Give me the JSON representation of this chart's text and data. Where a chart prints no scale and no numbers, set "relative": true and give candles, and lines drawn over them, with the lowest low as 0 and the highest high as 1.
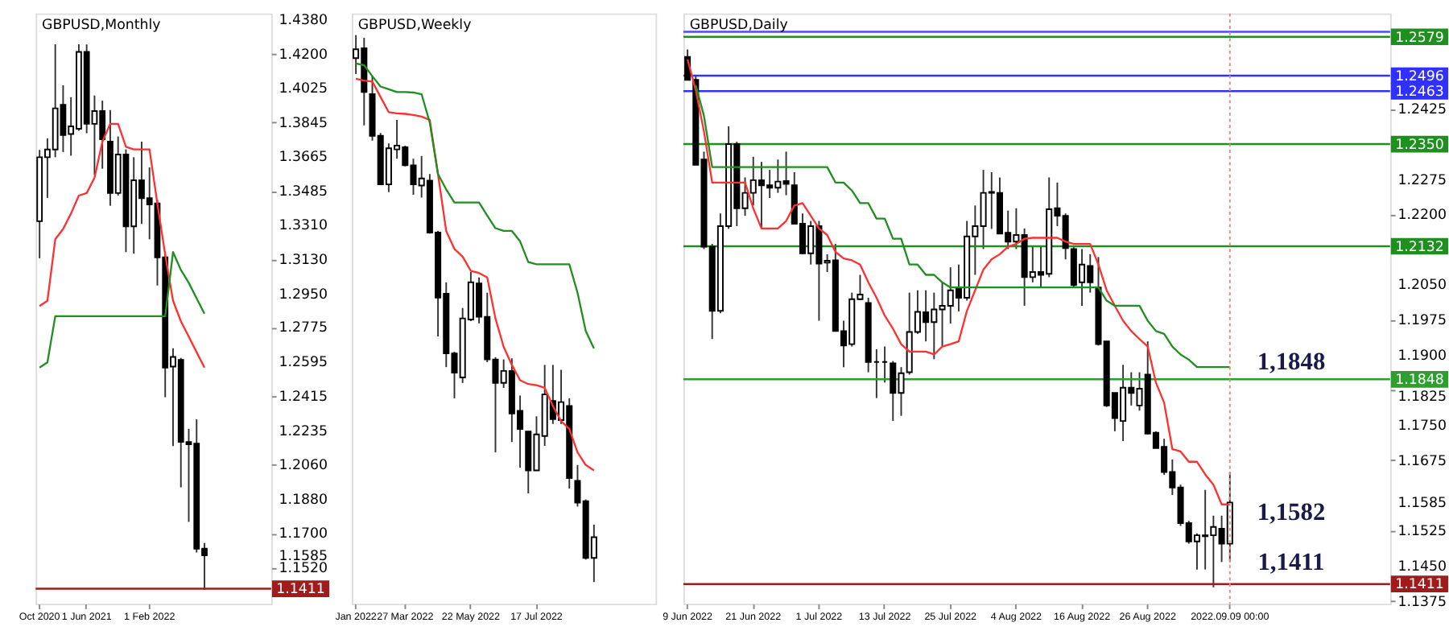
{
  "chart_data": [
    {
      "type": "candlestick",
      "title": "GBPUSD,Monthly",
      "categories": [
        "Oct 2020",
        null,
        null,
        null,
        null,
        null,
        "1 Jun 2021",
        null,
        null,
        null,
        null,
        null,
        null,
        null,
        "1 Feb 2022",
        null,
        null,
        null,
        null,
        null,
        null,
        null,
        null,
        null,
        null,
        null,
        null,
        null,
        null,
        null
      ],
      "ohlc": [
        [
          1.3328,
          1.37,
          1.3135,
          1.3662
        ],
        [
          1.3662,
          1.376,
          1.345,
          1.3702
        ],
        [
          1.3702,
          1.4251,
          1.3662,
          1.3917
        ],
        [
          1.3935,
          1.4037,
          1.3689,
          1.3778
        ],
        [
          1.3783,
          1.3975,
          1.367,
          1.3823
        ],
        [
          1.381,
          1.4251,
          1.38,
          1.4211
        ],
        [
          1.4211,
          1.425,
          1.3787,
          1.3836
        ],
        [
          1.3836,
          1.3984,
          1.3569,
          1.3903
        ],
        [
          1.3903,
          1.3957,
          1.3602,
          1.3756
        ],
        [
          1.3743,
          1.3908,
          1.3409,
          1.3475
        ],
        [
          1.3475,
          1.377,
          1.3462,
          1.3676
        ],
        [
          1.3676,
          1.3703,
          1.3167,
          1.3301
        ],
        [
          1.3301,
          1.3662,
          1.3159,
          1.3542
        ],
        [
          1.3542,
          1.3743,
          1.3314,
          1.3448
        ],
        [
          1.3448,
          1.3609,
          1.3234,
          1.3416
        ],
        [
          1.3421,
          1.344,
          1.2993,
          1.314
        ],
        [
          1.314,
          1.317,
          1.241,
          1.2565
        ],
        [
          1.257,
          1.2665,
          1.2155,
          1.262
        ],
        [
          1.2605,
          1.2615,
          1.194,
          1.2177
        ],
        [
          1.2177,
          1.2245,
          1.176,
          1.2165
        ],
        [
          1.2168,
          1.2295,
          1.16,
          1.162
        ],
        [
          1.162,
          1.165,
          1.1405,
          1.1585
        ],
        null,
        null,
        null,
        null,
        null,
        null,
        null,
        null
      ],
      "series": [
        {
          "type": "line",
          "color": "#ff3030",
          "values": [
            1.2886,
            1.2913,
            1.3234,
            1.3288,
            1.3368,
            1.3462,
            1.3475,
            1.3555,
            1.3743,
            1.3836,
            1.3836,
            1.3716,
            1.3703,
            1.3703,
            1.3703,
            1.3421,
            1.3154,
            1.2913,
            1.2806,
            1.2726,
            1.2645,
            1.2565,
            null,
            null,
            null,
            null,
            null,
            null,
            null,
            null
          ]
        },
        {
          "type": "line",
          "color": "#1f8f1f",
          "values": [
            1.2565,
            1.2592,
            1.2833,
            1.2833,
            1.2833,
            1.2833,
            1.2833,
            1.2833,
            1.2833,
            1.2833,
            1.2833,
            1.2833,
            1.2833,
            1.2833,
            1.2833,
            1.2833,
            1.2833,
            1.3167,
            1.3074,
            1.3007,
            1.2926,
            1.2846,
            null,
            null,
            null,
            null,
            null,
            null,
            null,
            null
          ]
        }
      ],
      "ylim": [
        1.1333,
        1.4412
      ],
      "yticks": [
        {
          "value": 1.438,
          "label": "1.4380"
        },
        {
          "value": 1.42,
          "label": "1.4200"
        },
        {
          "value": 1.4025,
          "label": "1.4025"
        },
        {
          "value": 1.3845,
          "label": "1.3845"
        },
        {
          "value": 1.3665,
          "label": "1.3665"
        },
        {
          "value": 1.3485,
          "label": "1.3485"
        },
        {
          "value": 1.331,
          "label": "1.3310"
        },
        {
          "value": 1.313,
          "label": "1.3130"
        },
        {
          "value": 1.295,
          "label": "1.2950"
        },
        {
          "value": 1.2775,
          "label": "1.2775"
        },
        {
          "value": 1.2595,
          "label": "1.2595"
        },
        {
          "value": 1.2415,
          "label": "1.2415"
        },
        {
          "value": 1.2235,
          "label": "1.2235"
        },
        {
          "value": 1.206,
          "label": "1.2060"
        },
        {
          "value": 1.188,
          "label": "1.1880"
        },
        {
          "value": 1.17,
          "label": "1.1700"
        },
        {
          "value": 1.1585,
          "label": "1.1585"
        },
        {
          "value": 1.152,
          "label": "1.1520"
        }
      ],
      "ref_lines": [
        {
          "axis": "y",
          "value": 1.1411,
          "label": "1.1411",
          "color": "#a01c1c"
        }
      ]
    },
    {
      "type": "candlestick",
      "title": "GBPUSD,Weekly",
      "relative": true,
      "tick_labels": "x",
      "categories": [
        "Jan 2022",
        null,
        null,
        null,
        null,
        null,
        "27 Mar 2022",
        null,
        null,
        null,
        null,
        null,
        null,
        null,
        "22 May 2022",
        null,
        null,
        null,
        null,
        null,
        null,
        null,
        "17 Jul 2022",
        null,
        null,
        null,
        null,
        null,
        null,
        null,
        null,
        null,
        null,
        null,
        null,
        null,
        null
      ],
      "ohlc": [
        [
          0.958,
          1.0,
          0.929,
          0.974
        ],
        [
          0.976,
          0.995,
          0.835,
          0.896
        ],
        [
          0.892,
          0.925,
          0.807,
          0.816
        ],
        [
          0.816,
          0.821,
          0.727,
          0.727
        ],
        [
          0.727,
          0.802,
          0.713,
          0.793
        ],
        [
          0.791,
          0.845,
          0.774,
          0.798
        ],
        [
          0.795,
          0.798,
          0.76,
          0.762
        ],
        [
          0.762,
          0.774,
          0.708,
          0.727
        ],
        [
          0.725,
          0.779,
          0.703,
          0.738
        ],
        [
          0.734,
          0.746,
          0.637,
          0.639
        ],
        [
          0.639,
          0.642,
          0.449,
          0.52
        ],
        [
          0.527,
          0.548,
          0.393,
          0.418
        ],
        [
          0.418,
          0.421,
          0.336,
          0.383
        ],
        [
          0.374,
          0.501,
          0.364,
          0.482
        ],
        [
          0.48,
          0.567,
          0.477,
          0.548
        ],
        [
          0.546,
          0.557,
          0.473,
          0.485
        ],
        [
          0.485,
          0.529,
          0.402,
          0.407
        ],
        [
          0.407,
          0.411,
          0.237,
          0.364
        ],
        [
          0.364,
          0.407,
          0.355,
          0.386
        ],
        [
          0.386,
          0.409,
          0.256,
          0.308
        ],
        [
          0.313,
          0.341,
          0.209,
          0.28
        ],
        [
          0.275,
          0.275,
          0.162,
          0.204
        ],
        [
          0.204,
          0.303,
          0.204,
          0.27
        ],
        [
          0.267,
          0.397,
          0.249,
          0.343
        ],
        [
          0.331,
          0.397,
          0.289,
          0.298
        ],
        [
          0.296,
          0.388,
          0.289,
          0.329
        ],
        [
          0.322,
          0.336,
          0.171,
          0.19
        ],
        [
          0.185,
          0.214,
          0.138,
          0.145
        ],
        [
          0.148,
          0.151,
          0.041,
          0.044
        ],
        [
          0.044,
          0.105,
          0,
          0.082
        ],
        null,
        null,
        null,
        null,
        null,
        null,
        null
      ],
      "series": [
        {
          "type": "line",
          "color": "#ff3030",
          "values": [
            0.92,
            0.917,
            0.915,
            0.887,
            0.859,
            0.857,
            0.856,
            0.854,
            0.851,
            0.845,
            0.746,
            0.642,
            0.609,
            0.595,
            0.569,
            0.565,
            0.557,
            0.482,
            0.43,
            0.397,
            0.369,
            0.362,
            0.36,
            0.355,
            0.322,
            0.294,
            0.28,
            0.237,
            0.214,
            0.204,
            null,
            null,
            null,
            null,
            null,
            null,
            null
          ]
        },
        {
          "type": "line",
          "color": "#1f8f1f",
          "values": [
            0.948,
            0.945,
            0.925,
            0.906,
            0.901,
            0.896,
            0.896,
            0.895,
            0.892,
            0.84,
            0.746,
            0.718,
            0.694,
            0.694,
            0.694,
            0.694,
            0.67,
            0.647,
            0.642,
            0.642,
            0.623,
            0.585,
            0.581,
            0.581,
            0.581,
            0.581,
            0.581,
            0.529,
            0.459,
            0.427,
            null,
            null,
            null,
            null,
            null,
            null,
            null
          ]
        }
      ]
    },
    {
      "type": "candlestick",
      "title": "GBPUSD,Daily",
      "categories": [
        "9 Jun 2022",
        null,
        null,
        null,
        null,
        null,
        null,
        null,
        "21 Jun 2022",
        null,
        null,
        null,
        null,
        null,
        null,
        null,
        "1 Jul 2022",
        null,
        null,
        null,
        null,
        null,
        null,
        null,
        "13 Jul 2022",
        null,
        null,
        null,
        null,
        null,
        null,
        null,
        "25 Jul 2022",
        null,
        null,
        null,
        null,
        null,
        null,
        null,
        "4 Aug 2022",
        null,
        null,
        null,
        null,
        null,
        null,
        null,
        "16 Aug 2022",
        null,
        null,
        null,
        null,
        null,
        null,
        null,
        "26 Aug 2022",
        null,
        null,
        null,
        null,
        null,
        null,
        null,
        null,
        null,
        "2022.09.09 00:00",
        null,
        null,
        null,
        null,
        null,
        null,
        null,
        null,
        null,
        null,
        null,
        null,
        null,
        null,
        null,
        null,
        null,
        null,
        null
      ],
      "ohlc": [
        [
          1.2536,
          1.2552,
          1.2487,
          1.2487
        ],
        [
          1.2487,
          1.2498,
          1.2306,
          1.2306
        ],
        [
          1.2317,
          1.2334,
          1.2126,
          1.2131
        ],
        [
          1.2131,
          1.2137,
          1.1934,
          1.1994
        ],
        [
          1.1994,
          1.2202,
          1.1989,
          1.2175
        ],
        [
          1.2175,
          1.2388,
          1.2169,
          1.235
        ],
        [
          1.235,
          1.2355,
          1.2175,
          1.2213
        ],
        [
          1.2213,
          1.2279,
          1.2197,
          1.2246
        ],
        [
          1.2246,
          1.2323,
          1.2219,
          1.2273
        ],
        [
          1.2273,
          1.2312,
          1.217,
          1.2262
        ],
        [
          1.2262,
          1.2295,
          1.2235,
          1.2257
        ],
        [
          1.2257,
          1.2317,
          1.2246,
          1.227
        ],
        [
          1.2271,
          1.2334,
          1.2241,
          1.2265
        ],
        [
          1.2262,
          1.229,
          1.218,
          1.218
        ],
        [
          1.218,
          1.2202,
          1.2115,
          1.2117
        ],
        [
          1.2117,
          1.2186,
          1.2093,
          1.2175
        ],
        [
          1.2175,
          1.2186,
          1.1973,
          1.2095
        ],
        [
          1.2097,
          1.2115,
          1.2077,
          1.2101
        ],
        [
          1.2102,
          1.2137,
          1.1951,
          1.1951
        ],
        [
          1.1951,
          1.1973,
          1.1874,
          1.192
        ],
        [
          1.1923,
          1.2033,
          1.1918,
          1.2019
        ],
        [
          1.2019,
          1.2071,
          1.2017,
          1.2029
        ],
        [
          1.2011,
          1.2022,
          1.1863,
          1.1885
        ],
        [
          1.1885,
          1.1912,
          1.1808,
          1.1885
        ],
        [
          1.1885,
          1.1918,
          1.1841,
          1.1885
        ],
        [
          1.1882,
          1.1887,
          1.1759,
          1.1819
        ],
        [
          1.1819,
          1.1874,
          1.177,
          1.1861
        ],
        [
          1.1863,
          1.2033,
          1.1858,
          1.1949
        ],
        [
          1.1949,
          1.2038,
          1.1945,
          1.1992
        ],
        [
          1.1991,
          1.2038,
          1.1929,
          1.197
        ],
        [
          1.197,
          1.2033,
          1.1891,
          1.1997
        ],
        [
          1.1997,
          1.2055,
          1.1918,
          1.2005
        ],
        [
          1.2005,
          1.2087,
          1.1967,
          1.2038
        ],
        [
          1.2042,
          1.2093,
          1.1993,
          1.2022
        ],
        [
          1.2022,
          1.2186,
          1.2016,
          1.2153
        ],
        [
          1.2153,
          1.2219,
          1.2071,
          1.2175
        ],
        [
          1.2175,
          1.2295,
          1.2126,
          1.2246
        ],
        [
          1.2246,
          1.229,
          1.2169,
          1.2248
        ],
        [
          1.2246,
          1.2279,
          1.2159,
          1.2159
        ],
        [
          1.2161,
          1.2208,
          1.2126,
          1.2142
        ],
        [
          1.2142,
          1.2213,
          1.2126,
          1.2156
        ],
        [
          1.2156,
          1.217,
          1.2005,
          1.2066
        ],
        [
          1.2066,
          1.2131,
          1.2055,
          1.2077
        ],
        [
          1.2077,
          1.2131,
          1.2044,
          1.2071
        ],
        [
          1.2073,
          1.2279,
          1.2066,
          1.2211
        ],
        [
          1.2213,
          1.2268,
          1.2175,
          1.2197
        ],
        [
          1.2197,
          1.2202,
          1.2104,
          1.2128
        ],
        [
          1.2126,
          1.2131,
          1.2044,
          1.2049
        ],
        [
          1.2055,
          1.2126,
          1.2005,
          1.2093
        ],
        [
          1.209,
          1.2115,
          1.2033,
          1.2055
        ],
        [
          1.2044,
          1.2109,
          1.192,
          1.1923
        ],
        [
          1.1929,
          1.1929,
          1.1789,
          1.1792
        ],
        [
          1.1819,
          1.1819,
          1.1737,
          1.1765
        ],
        [
          1.1759,
          1.1879,
          1.1716,
          1.183
        ],
        [
          1.183,
          1.1863,
          1.1792,
          1.1819
        ],
        [
          1.1792,
          1.1863,
          1.1781,
          1.1828
        ],
        [
          1.1858,
          1.1929,
          1.173,
          1.1732
        ],
        [
          1.1734,
          1.1737,
          1.1701,
          1.1701
        ],
        [
          1.1704,
          1.1721,
          1.1644,
          1.165
        ],
        [
          1.165,
          1.1677,
          1.1601,
          1.1617
        ],
        [
          1.1617,
          1.1623,
          1.1535,
          1.1541
        ],
        [
          1.1541,
          1.1546,
          1.1497,
          1.1502
        ],
        [
          1.1502,
          1.1519,
          1.1442,
          1.1515
        ],
        [
          1.1515,
          1.1612,
          1.1442,
          1.1513
        ],
        [
          1.1515,
          1.1557,
          1.1404,
          1.1533
        ],
        [
          1.1529,
          1.1557,
          1.1458,
          1.1497
        ],
        [
          1.1497,
          1.165,
          1.1458,
          1.1585
        ],
        null,
        null,
        null,
        null,
        null,
        null,
        null,
        null,
        null,
        null,
        null,
        null,
        null,
        null,
        null,
        null,
        null,
        null,
        null
      ],
      "series": [
        {
          "type": "line",
          "color": "#ff3030",
          "values": [
            1.2531,
            1.2465,
            1.2377,
            1.2268,
            1.2268,
            1.2268,
            1.2268,
            1.2268,
            1.2213,
            1.217,
            1.217,
            1.217,
            1.2186,
            1.2219,
            1.2224,
            1.2197,
            1.217,
            1.2156,
            1.212,
            1.2106,
            1.2102,
            1.2093,
            1.2055,
            1.2022,
            1.1984,
            1.1956,
            1.1923,
            1.1907,
            1.1907,
            1.1907,
            1.1901,
            1.1918,
            1.1923,
            1.1929,
            1.1994,
            1.2038,
            1.2082,
            1.2104,
            1.2115,
            1.2131,
            1.2137,
            1.2148,
            1.215,
            1.215,
            1.215,
            1.215,
            1.2142,
            1.2137,
            1.2137,
            1.2137,
            1.2093,
            1.2038,
            1.2005,
            1.1973,
            1.1951,
            1.1934,
            1.1918,
            1.1841,
            1.1798,
            1.1699,
            1.1694,
            1.1672,
            1.1672,
            1.1645,
            1.1623,
            1.1581,
            1.1581,
            null,
            null,
            null,
            null,
            null,
            null,
            null,
            null,
            null,
            null,
            null,
            null,
            null,
            null,
            null,
            null,
            null,
            null,
            null
          ]
        },
        {
          "type": "line",
          "color": "#1f8f1f",
          "values": [
            null,
            1.2476,
            1.241,
            1.2301,
            1.2301,
            1.2301,
            1.2301,
            1.2301,
            1.2301,
            1.2301,
            1.2301,
            1.2301,
            1.2301,
            1.2301,
            1.2301,
            1.2301,
            1.2301,
            1.2301,
            1.2268,
            1.2268,
            1.2251,
            1.2224,
            1.2224,
            1.2191,
            1.2191,
            1.2148,
            1.2148,
            1.2093,
            1.2093,
            1.2071,
            1.2071,
            1.2055,
            1.2044,
            1.2044,
            1.2044,
            1.2044,
            1.2044,
            1.2044,
            1.2044,
            1.2044,
            1.2044,
            1.2044,
            1.2044,
            1.2044,
            1.2044,
            1.2044,
            1.2044,
            1.2044,
            1.2044,
            1.2044,
            1.2044,
            1.2016,
            1.2005,
            1.2005,
            1.2005,
            1.2005,
            1.1973,
            1.1951,
            1.1945,
            1.1918,
            1.1901,
            1.189,
            1.1874,
            1.1874,
            1.1874,
            1.1874,
            1.1874,
            null,
            null,
            null,
            null,
            null,
            null,
            null,
            null,
            null,
            null,
            null,
            null,
            null,
            null,
            null,
            null,
            null,
            null,
            null
          ]
        }
      ],
      "ylim": [
        1.1369,
        1.2629
      ],
      "yticks": [
        {
          "value": 1.2425,
          "label": "1.2425"
        },
        {
          "value": 1.2275,
          "label": "1.2275"
        },
        {
          "value": 1.22,
          "label": "1.2200"
        },
        {
          "value": 1.205,
          "label": "1.2050"
        },
        {
          "value": 1.1975,
          "label": "1.1975"
        },
        {
          "value": 1.19,
          "label": "1.1900"
        },
        {
          "value": 1.1825,
          "label": "1.1825"
        },
        {
          "value": 1.175,
          "label": "1.1750"
        },
        {
          "value": 1.1675,
          "label": "1.1675"
        },
        {
          "value": 1.1585,
          "label": "1.1585"
        },
        {
          "value": 1.1525,
          "label": "1.1525"
        },
        {
          "value": 1.145,
          "label": "1.1450"
        },
        {
          "value": 1.1375,
          "label": "1.1375"
        }
      ],
      "ref_lines": [
        {
          "axis": "y",
          "value": 1.259,
          "label": null,
          "color": "#4a4aff"
        },
        {
          "axis": "y",
          "value": 1.2579,
          "label": "1.2579",
          "color": "#1f8f1f"
        },
        {
          "axis": "y",
          "value": 1.2496,
          "label": "1.2496",
          "color": "#3030ff"
        },
        {
          "axis": "y",
          "value": 1.2463,
          "label": "1.2463",
          "color": "#3030ff"
        },
        {
          "axis": "y",
          "value": 1.235,
          "label": "1.2350",
          "color": "#1f8f1f"
        },
        {
          "axis": "y",
          "value": 1.2132,
          "label": "1.2132",
          "color": "#1f8f1f"
        },
        {
          "axis": "y",
          "value": 1.1848,
          "label": "1.1848",
          "color": "#2e9e2e"
        },
        {
          "axis": "y",
          "value": 1.1411,
          "label": "1.1411",
          "color": "#a01c1c"
        },
        {
          "axis": "x",
          "value": "2022.09.09 00:00",
          "label": null,
          "color": "#e08a8a",
          "line_style": "dotted"
        }
      ],
      "annotations": [
        "1,1848",
        "1,1582",
        "1,1411"
      ]
    }
  ]
}
